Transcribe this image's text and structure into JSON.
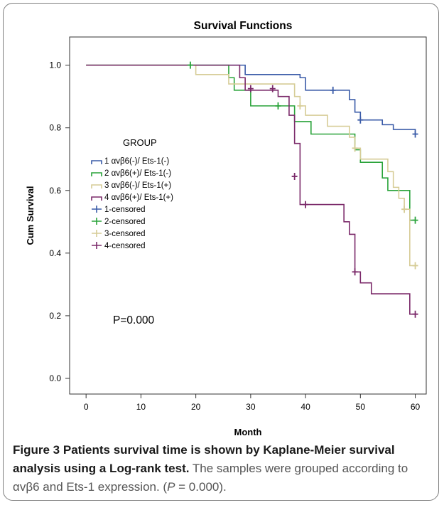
{
  "caption": {
    "label": "Figure 3",
    "title": "Patients survival time is shown by Kaplane-Meier survival analysis using a Log-rank test.",
    "text_before_p": "The samples were grouped according to αvβ6 and Ets-1 expression. (",
    "p_italic": "P",
    "text_after_p": " = 0.000)."
  },
  "chart_data": {
    "type": "line",
    "title": "Survival Functions",
    "xlabel": "Month",
    "ylabel": "Cum Survival",
    "xlim": [
      -3,
      62
    ],
    "ylim": [
      -0.05,
      1.09
    ],
    "x_ticks": [
      0,
      10,
      20,
      30,
      40,
      50,
      60
    ],
    "y_ticks": [
      0.0,
      0.2,
      0.4,
      0.6,
      0.8,
      1.0
    ],
    "x_tick_labels": [
      "0",
      "10",
      "20",
      "30",
      "40",
      "50",
      "60"
    ],
    "y_tick_labels": [
      "0.0",
      "0.2",
      "0.4",
      "0.6",
      "0.8",
      "1.0"
    ],
    "grid": false,
    "legend": {
      "title": "GROUP",
      "placement": "middle-left",
      "entries": [
        {
          "label": "1  αvβ6(-)/ Ets-1(-)",
          "kind": "step",
          "series": 0
        },
        {
          "label": "2  αvβ6(+)/ Ets-1(-)",
          "kind": "step",
          "series": 1
        },
        {
          "label": "3 αvβ6(-)/ Ets-1(+)",
          "kind": "step",
          "series": 2
        },
        {
          "label": "4 αvβ6(+)/ Ets-1(+)",
          "kind": "step",
          "series": 3
        },
        {
          "label": "1-censored",
          "kind": "censor",
          "series": 0
        },
        {
          "label": "2-censored",
          "kind": "censor",
          "series": 1
        },
        {
          "label": "3-censored",
          "kind": "censor",
          "series": 2
        },
        {
          "label": "4-censored",
          "kind": "censor",
          "series": 3
        }
      ]
    },
    "annotation": "P=0.000",
    "series": [
      {
        "name": "1  αvβ6(-)/ Ets-1(-)",
        "color": "#3a5ba8",
        "steps": [
          [
            0,
            1.0
          ],
          [
            29,
            0.97
          ],
          [
            39,
            0.96
          ],
          [
            40,
            0.92
          ],
          [
            48,
            0.89
          ],
          [
            49,
            0.85
          ],
          [
            50,
            0.825
          ],
          [
            54,
            0.81
          ],
          [
            56,
            0.795
          ],
          [
            60,
            0.78
          ]
        ],
        "censored": [
          [
            45,
            0.92
          ],
          [
            50,
            0.825
          ],
          [
            60,
            0.78
          ]
        ]
      },
      {
        "name": "2  αvβ6(+)/ Ets-1(-)",
        "color": "#2aa33a",
        "steps": [
          [
            0,
            1.0
          ],
          [
            26,
            0.96
          ],
          [
            27,
            0.92
          ],
          [
            30,
            0.87
          ],
          [
            38,
            0.82
          ],
          [
            41,
            0.78
          ],
          [
            49,
            0.73
          ],
          [
            50,
            0.69
          ],
          [
            54,
            0.64
          ],
          [
            55,
            0.6
          ],
          [
            59,
            0.505
          ],
          [
            60,
            0.505
          ]
        ],
        "censored": [
          [
            19,
            1.0
          ],
          [
            35,
            0.87
          ],
          [
            60,
            0.505
          ]
        ]
      },
      {
        "name": "3 αvβ6(-)/ Ets-1(+)",
        "color": "#d6cc96",
        "steps": [
          [
            0,
            1.0
          ],
          [
            20,
            0.97
          ],
          [
            26,
            0.94
          ],
          [
            38,
            0.9
          ],
          [
            39,
            0.87
          ],
          [
            40,
            0.84
          ],
          [
            44,
            0.805
          ],
          [
            48,
            0.77
          ],
          [
            49,
            0.735
          ],
          [
            50,
            0.7
          ],
          [
            55,
            0.66
          ],
          [
            56,
            0.61
          ],
          [
            57,
            0.575
          ],
          [
            58,
            0.54
          ],
          [
            59,
            0.36
          ],
          [
            60,
            0.36
          ]
        ],
        "censored": [
          [
            39,
            0.87
          ],
          [
            49,
            0.735
          ],
          [
            58,
            0.54
          ],
          [
            60,
            0.36
          ]
        ]
      },
      {
        "name": "4 αvβ6(+)/ Ets-1(+)",
        "color": "#7b2a6a",
        "steps": [
          [
            0,
            1.0
          ],
          [
            28,
            0.96
          ],
          [
            29,
            0.92
          ],
          [
            35,
            0.9
          ],
          [
            37,
            0.84
          ],
          [
            38,
            0.75
          ],
          [
            39,
            0.555
          ],
          [
            47,
            0.5
          ],
          [
            48,
            0.46
          ],
          [
            49,
            0.34
          ],
          [
            50,
            0.305
          ],
          [
            52,
            0.27
          ],
          [
            59,
            0.205
          ],
          [
            60,
            0.205
          ]
        ],
        "censored": [
          [
            30,
            0.925
          ],
          [
            34,
            0.925
          ],
          [
            38,
            0.645
          ],
          [
            40,
            0.555
          ],
          [
            49,
            0.34
          ],
          [
            60,
            0.205
          ]
        ]
      }
    ]
  }
}
